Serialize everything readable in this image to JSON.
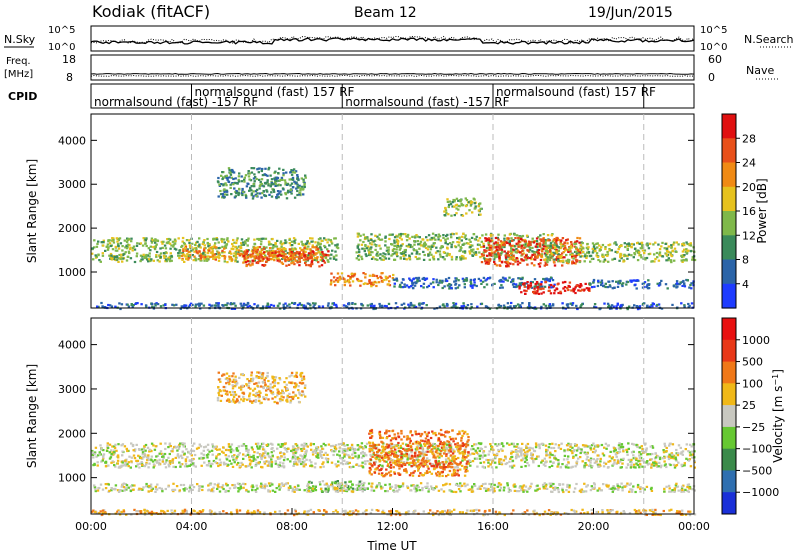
{
  "header": {
    "station": "Kodiak (fitACF)",
    "beam": "Beam 12",
    "date": "19/Jun/2015"
  },
  "noise_panel": {
    "left_label": "N.Sky",
    "right_label": "N.Search",
    "left_ticks": [
      "10^5",
      "10^0"
    ],
    "right_ticks": [
      "10^5",
      "10^0"
    ]
  },
  "freq_panel": {
    "left_label_line1": "Freq.",
    "left_label_line2": "[MHz]",
    "right_label": "Nave",
    "left_ticks": [
      "18",
      "8"
    ],
    "right_ticks": [
      "60",
      "0"
    ]
  },
  "cpid_panel": {
    "label": "CPID",
    "segments": [
      {
        "text": "normalsound (fast) -157 RF",
        "start_hour": 0.0,
        "row": 2
      },
      {
        "text": "normalsound (fast) 157 RF",
        "start_hour": 4.0,
        "row": 1
      },
      {
        "text": "normalsound (fast) -157 RF",
        "start_hour": 10.0,
        "row": 2
      },
      {
        "text": "normalsound (fast) 157 RF",
        "start_hour": 16.0,
        "row": 1
      }
    ],
    "boundaries_hours": [
      0.0,
      4.0,
      10.0,
      16.0,
      22.0
    ]
  },
  "chart_data": [
    {
      "type": "heatmap",
      "name": "power",
      "ylabel": "Slant Range [km]",
      "ylim": [
        180,
        4600
      ],
      "yticks": [
        1000,
        2000,
        3000,
        4000
      ],
      "xlim_hours": [
        0,
        24
      ],
      "colorbar": {
        "label": "Power [dB]",
        "ticks": [
          "4",
          "8",
          "12",
          "16",
          "20",
          "24",
          "28"
        ],
        "colors": [
          "#1e3cff",
          "#2b64a8",
          "#3a8a5a",
          "#7fb84a",
          "#e6c21e",
          "#f08a14",
          "#e8501a",
          "#e01010"
        ]
      },
      "echo_regions": [
        {
          "t0": 0.0,
          "t1": 9.8,
          "r0": 1250,
          "r1": 1800,
          "level": 3
        },
        {
          "t0": 3.5,
          "t1": 9.0,
          "r0": 1300,
          "r1": 1600,
          "level": 5
        },
        {
          "t0": 6.0,
          "t1": 9.5,
          "r0": 1150,
          "r1": 1500,
          "level": 6
        },
        {
          "t0": 10.5,
          "t1": 18.5,
          "r0": 1300,
          "r1": 1900,
          "level": 3
        },
        {
          "t0": 15.5,
          "t1": 19.5,
          "r0": 1150,
          "r1": 1800,
          "level": 6
        },
        {
          "t0": 18.0,
          "t1": 24.0,
          "r0": 1250,
          "r1": 1700,
          "level": 3
        },
        {
          "t0": 9.5,
          "t1": 12.0,
          "r0": 700,
          "r1": 1000,
          "level": 5
        },
        {
          "t0": 12.0,
          "t1": 18.5,
          "r0": 650,
          "r1": 900,
          "level": 1
        },
        {
          "t0": 17.0,
          "t1": 19.8,
          "r0": 520,
          "r1": 800,
          "level": 7
        },
        {
          "t0": 19.8,
          "t1": 24.0,
          "r0": 650,
          "r1": 850,
          "level": 1
        },
        {
          "t0": 5.0,
          "t1": 8.5,
          "r0": 2700,
          "r1": 3400,
          "level": 2
        },
        {
          "t0": 14.0,
          "t1": 15.5,
          "r0": 2300,
          "r1": 2700,
          "level": 3
        },
        {
          "t0": 0.0,
          "t1": 24.0,
          "r0": 180,
          "r1": 320,
          "level": 1
        }
      ]
    },
    {
      "type": "heatmap",
      "name": "velocity",
      "ylabel": "Slant Range [km]",
      "xlabel": "Time UT",
      "ylim": [
        180,
        4600
      ],
      "yticks": [
        1000,
        2000,
        3000,
        4000
      ],
      "xlim_hours": [
        0,
        24
      ],
      "xticks": [
        "00:00",
        "04:00",
        "08:00",
        "12:00",
        "16:00",
        "20:00",
        "00:00"
      ],
      "colorbar": {
        "label": "Velocity [m s^-1]",
        "ticks": [
          "1000",
          "500",
          "100",
          "25",
          "−25",
          "−100",
          "−500",
          "−1000"
        ],
        "colors": [
          "#1a30d8",
          "#2f6fb0",
          "#3a8a4a",
          "#66c832",
          "#c8c8c0",
          "#f0b818",
          "#f07818",
          "#e83818",
          "#e81010"
        ]
      },
      "echo_regions": [
        {
          "t0": 0.0,
          "t1": 24.0,
          "r0": 1250,
          "r1": 1800,
          "level": 4
        },
        {
          "t0": 11.0,
          "t1": 15.0,
          "r0": 1050,
          "r1": 2100,
          "level": 6
        },
        {
          "t0": 8.5,
          "t1": 11.0,
          "r0": 700,
          "r1": 950,
          "level": 3
        },
        {
          "t0": 0.0,
          "t1": 24.0,
          "r0": 700,
          "r1": 900,
          "level": 4
        },
        {
          "t0": 5.0,
          "t1": 8.5,
          "r0": 2700,
          "r1": 3400,
          "level": 5
        },
        {
          "t0": 0.0,
          "t1": 24.0,
          "r0": 180,
          "r1": 300,
          "level": 5
        }
      ]
    }
  ]
}
